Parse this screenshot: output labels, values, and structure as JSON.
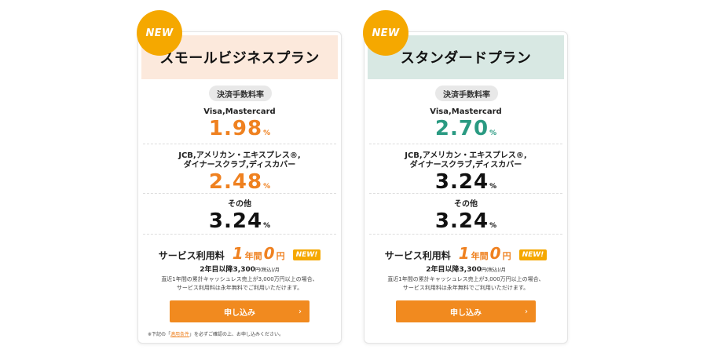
{
  "colors": {
    "accent": "#ef8120",
    "teal": "#2a9a82",
    "badge": "#f5a800",
    "button": "#f18a1f"
  },
  "plans": [
    {
      "badge": "NEW",
      "title": "スモールビジネスプラン",
      "fee_header": "決済手数料率",
      "rate1_label": "Visa,Mastercard",
      "rate1_value": "1.98",
      "rate2_label_line1": "JCB,アメリカン・エキスプレス®,",
      "rate2_label_line2": "ダイナースクラブ,ディスカバー",
      "rate2_value": "2.48",
      "rate3_label": "その他",
      "rate3_value": "3.24",
      "percent": "%",
      "service_label": "サービス利用料",
      "fee_num1": "1",
      "fee_unit1": "年間",
      "fee_num2": "0",
      "fee_unit2": "円",
      "new_tag": "NEW!",
      "detail_main": "2年目以降3,300",
      "detail_small": "円(税込)",
      "detail_end": "/月",
      "note_line1": "直近1年間の累計キャッシュレス売上が3,000万円以上の場合、",
      "note_line2": "サービス利用料は永年無料でご利用いただけます。",
      "apply_label": "申し込み",
      "apply_chevron": "›",
      "footnote_pre": "※下記の「",
      "footnote_link": "適用条件",
      "footnote_post": "」を必ずご確認の上、お申し込みください。"
    },
    {
      "badge": "NEW",
      "title": "スタンダードプラン",
      "fee_header": "決済手数料率",
      "rate1_label": "Visa,Mastercard",
      "rate1_value": "2.70",
      "rate2_label_line1": "JCB,アメリカン・エキスプレス®,",
      "rate2_label_line2": "ダイナースクラブ,ディスカバー",
      "rate2_value": "3.24",
      "rate3_label": "その他",
      "rate3_value": "3.24",
      "percent": "%",
      "service_label": "サービス利用料",
      "fee_num1": "1",
      "fee_unit1": "年間",
      "fee_num2": "0",
      "fee_unit2": "円",
      "new_tag": "NEW!",
      "detail_main": "2年目以降3,300",
      "detail_small": "円(税込)",
      "detail_end": "/月",
      "note_line1": "直近1年間の累計キャッシュレス売上が3,000万円以上の場合、",
      "note_line2": "サービス利用料は永年無料でご利用いただけます。",
      "apply_label": "申し込み",
      "apply_chevron": "›"
    }
  ]
}
